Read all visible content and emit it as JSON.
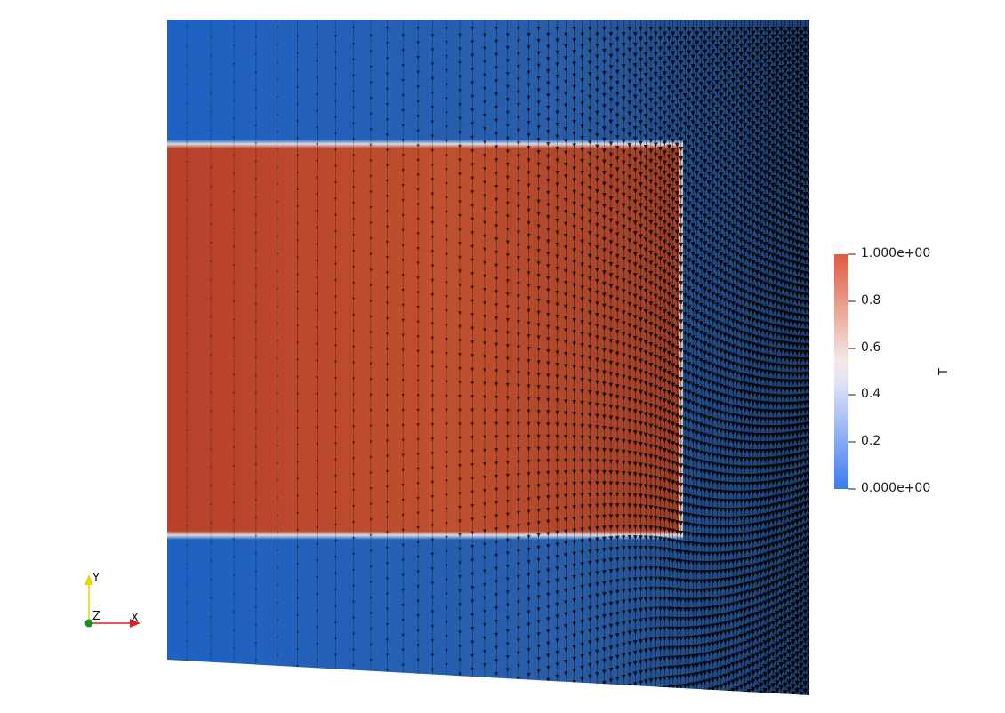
{
  "scalar_bar": {
    "title": "T",
    "max_label": "1.000e+00",
    "min_label": "0.000e+00",
    "tick_labels": [
      "0.8",
      "0.6",
      "0.4",
      "0.2"
    ],
    "range": [
      0,
      1
    ],
    "colors": {
      "low": "#3b4cc0",
      "mid": "#f2f2f2",
      "high": "#e05a3f"
    }
  },
  "field": {
    "hot_color": "#b8412c",
    "cold_color": "#1f62c4",
    "interface_color": "#d9d9d9",
    "glyph_color": "#000000"
  },
  "orientation_axes": {
    "x_label": "X",
    "y_label": "Y",
    "z_label": "Z",
    "x_color": "#e01e1e",
    "y_color": "#e8d800",
    "z_color": "#1e8c1e"
  }
}
